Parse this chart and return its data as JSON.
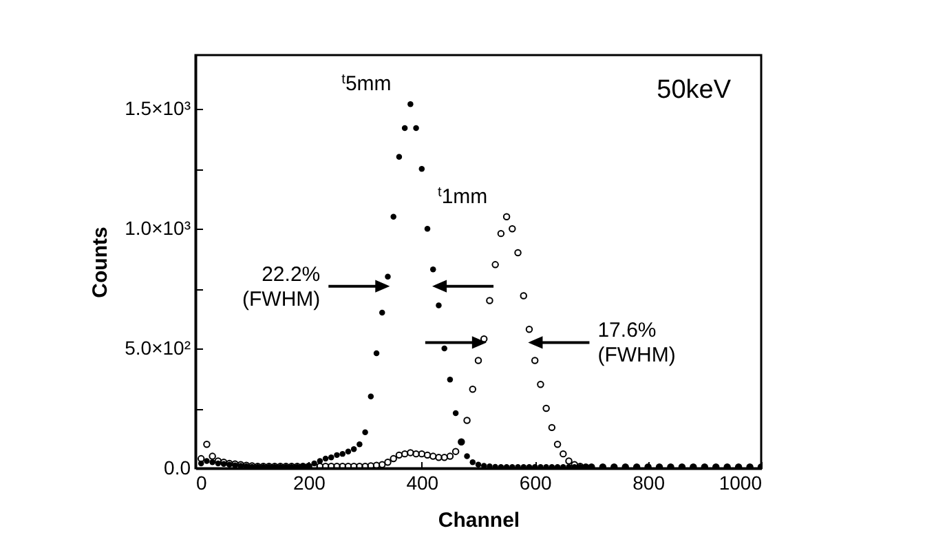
{
  "chart_data": {
    "type": "scatter",
    "xlabel": "Channel",
    "ylabel": "Counts",
    "x": [
      10,
      20,
      30,
      40,
      50,
      60,
      70,
      80,
      90,
      100,
      110,
      120,
      130,
      140,
      150,
      160,
      170,
      180,
      190,
      200,
      210,
      220,
      230,
      240,
      250,
      260,
      270,
      280,
      290,
      300,
      310,
      320,
      330,
      340,
      350,
      360,
      370,
      380,
      390,
      400,
      410,
      420,
      430,
      440,
      450,
      460,
      470,
      480,
      490,
      500,
      510,
      520,
      530,
      540,
      550,
      560,
      570,
      580,
      590,
      600,
      610,
      620,
      630,
      640,
      650,
      660,
      670,
      680,
      690,
      700,
      720,
      740,
      760,
      780,
      800,
      820,
      840,
      860,
      880,
      900,
      920,
      940,
      960,
      980,
      1000
    ],
    "series": [
      {
        "name": "$^{t}$5mm",
        "color": "#000000",
        "marker": "circle",
        "values": [
          20,
          30,
          25,
          20,
          18,
          15,
          12,
          10,
          8,
          6,
          5,
          5,
          5,
          5,
          5,
          5,
          5,
          5,
          8,
          10,
          20,
          30,
          40,
          45,
          55,
          60,
          70,
          80,
          100,
          150,
          300,
          480,
          650,
          800,
          1050,
          1300,
          1420,
          1520,
          1420,
          1250,
          1000,
          830,
          680,
          500,
          370,
          230,
          110,
          50,
          25,
          15,
          10,
          8,
          6,
          5,
          5,
          5,
          5,
          5,
          5,
          5,
          5,
          5,
          5,
          5,
          5,
          5,
          5,
          5,
          5,
          5,
          5,
          5,
          5,
          5,
          5,
          5,
          5,
          5,
          5,
          5,
          5,
          5,
          5,
          5,
          5
        ]
      },
      {
        "name": "$^{t}$1mm",
        "color": "#000000",
        "marker": "circle-open",
        "values": [
          40,
          100,
          50,
          30,
          25,
          20,
          18,
          15,
          12,
          10,
          8,
          8,
          8,
          8,
          8,
          8,
          8,
          8,
          8,
          8,
          8,
          8,
          8,
          8,
          8,
          8,
          8,
          8,
          8,
          8,
          10,
          12,
          15,
          25,
          40,
          55,
          60,
          65,
          60,
          60,
          55,
          50,
          45,
          45,
          50,
          70,
          110,
          200,
          330,
          450,
          540,
          700,
          850,
          980,
          1050,
          1000,
          900,
          720,
          580,
          450,
          350,
          250,
          170,
          100,
          60,
          30,
          15,
          8,
          5,
          5,
          5,
          5,
          5,
          5,
          5,
          5,
          5,
          5,
          5,
          5,
          5,
          5,
          5,
          5,
          5
        ]
      }
    ],
    "xlim": [
      0,
      1000
    ],
    "xticks": [
      0,
      200,
      400,
      600,
      800,
      1000
    ],
    "ylim": [
      0,
      1725
    ],
    "yticks": [
      {
        "value": 0,
        "label": "0.0"
      },
      {
        "value": 250,
        "label": null
      },
      {
        "value": 500,
        "label": "5.0×10²"
      },
      {
        "value": 750,
        "label": null
      },
      {
        "value": 1000,
        "label": "1.0×10³"
      },
      {
        "value": 1250,
        "label": null
      },
      {
        "value": 1500,
        "label": "1.5×10³"
      }
    ],
    "annotations": [
      "22.2%\n(FWHM)",
      "17.6%\n(FWHM)",
      "50keV"
    ]
  }
}
